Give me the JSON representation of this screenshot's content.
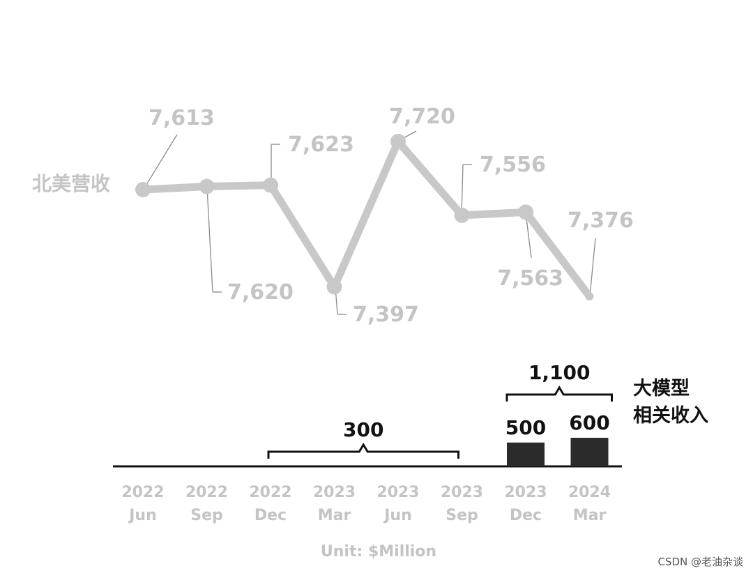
{
  "chart_data": {
    "type": "line",
    "categories": [
      [
        "2022",
        "Jun"
      ],
      [
        "2022",
        "Sep"
      ],
      [
        "2022",
        "Dec"
      ],
      [
        "2023",
        "Mar"
      ],
      [
        "2023",
        "Jun"
      ],
      [
        "2023",
        "Sep"
      ],
      [
        "2023",
        "Dec"
      ],
      [
        "2024",
        "Mar"
      ]
    ],
    "line_series": {
      "name": "北美营收",
      "values": [
        7613,
        7620,
        7623,
        7397,
        7720,
        7556,
        7563,
        7376
      ],
      "labels": [
        "7,613",
        "7,620",
        "7,623",
        "7,397",
        "7,720",
        "7,556",
        "7,563",
        "7,376"
      ],
      "color": "#c8c8c8"
    },
    "bar_series": {
      "name": "大模型相关收入",
      "name_lines": [
        "大模型",
        "相关收入"
      ],
      "values": [
        null,
        null,
        null,
        null,
        null,
        null,
        500,
        600
      ],
      "labels": [
        "",
        "",
        "",
        "",
        "",
        "",
        "500",
        "600"
      ],
      "color": "#2b2b2b"
    },
    "groups": [
      {
        "label": "300",
        "from_index": 2,
        "to_index": 5
      },
      {
        "label": "1,100",
        "from_index": 6,
        "to_index": 7
      }
    ],
    "unit": "Unit: $Million",
    "grid": false,
    "legend": "none"
  },
  "watermark": "CSDN @老油杂谈"
}
